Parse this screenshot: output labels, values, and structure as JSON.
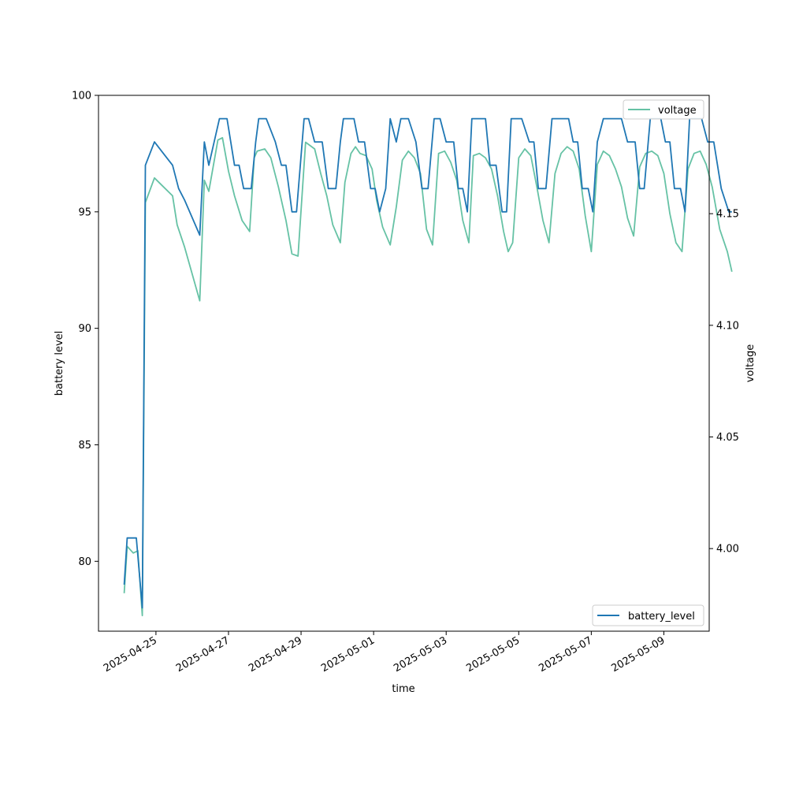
{
  "chart_data": {
    "type": "line",
    "xlabel": "time",
    "ylabel": "battery level",
    "ylabel_right": "voltage",
    "x_ticks": [
      "2025-04-25",
      "2025-04-27",
      "2025-04-29",
      "2025-05-01",
      "2025-05-03",
      "2025-05-05",
      "2025-05-07",
      "2025-05-09"
    ],
    "y_ticks": [
      80,
      85,
      90,
      95,
      100
    ],
    "y_right_ticks": [
      "4.00",
      "4.05",
      "4.10",
      "4.15"
    ],
    "ylim": [
      77.0,
      100.0
    ],
    "ylim_right": [
      3.963,
      4.203
    ],
    "xlim": [
      "2025-04-23T10:00",
      "2025-05-10T06:00"
    ],
    "grid": false,
    "series": [
      {
        "name": "battery_level",
        "axis": "left",
        "color": "#1f77b4",
        "legend_position": "lower right",
        "points": [
          [
            "2025-04-24T03:00",
            79
          ],
          [
            "2025-04-24T05:00",
            81
          ],
          [
            "2025-04-24T11:00",
            81
          ],
          [
            "2025-04-24T15:00",
            78
          ],
          [
            "2025-04-24T17:00",
            97
          ],
          [
            "2025-04-24T23:00",
            98
          ],
          [
            "2025-04-25T05:00",
            97.5
          ],
          [
            "2025-04-25T11:00",
            97
          ],
          [
            "2025-04-25T15:00",
            96
          ],
          [
            "2025-04-25T19:00",
            95.5
          ],
          [
            "2025-04-26T05:00",
            94
          ],
          [
            "2025-04-26T08:00",
            98
          ],
          [
            "2025-04-26T11:00",
            97
          ],
          [
            "2025-04-26T18:00",
            99
          ],
          [
            "2025-04-26T23:00",
            99
          ],
          [
            "2025-04-27T04:00",
            97
          ],
          [
            "2025-04-27T07:00",
            97
          ],
          [
            "2025-04-27T10:00",
            96
          ],
          [
            "2025-04-27T15:00",
            96
          ],
          [
            "2025-04-27T18:00",
            98
          ],
          [
            "2025-04-27T20:00",
            99
          ],
          [
            "2025-04-28T01:00",
            99
          ],
          [
            "2025-04-28T07:00",
            98
          ],
          [
            "2025-04-28T11:00",
            97
          ],
          [
            "2025-04-28T14:00",
            97
          ],
          [
            "2025-04-28T18:00",
            95
          ],
          [
            "2025-04-28T21:00",
            95
          ],
          [
            "2025-04-29T02:00",
            99
          ],
          [
            "2025-04-29T05:00",
            99
          ],
          [
            "2025-04-29T09:00",
            98
          ],
          [
            "2025-04-29T14:00",
            98
          ],
          [
            "2025-04-29T18:00",
            96
          ],
          [
            "2025-04-29T23:00",
            96
          ],
          [
            "2025-04-30T02:00",
            98
          ],
          [
            "2025-04-30T04:00",
            99
          ],
          [
            "2025-04-30T11:00",
            99
          ],
          [
            "2025-04-30T14:00",
            98
          ],
          [
            "2025-04-30T18:00",
            98
          ],
          [
            "2025-04-30T22:00",
            96
          ],
          [
            "2025-05-01T01:00",
            96
          ],
          [
            "2025-05-01T04:00",
            95
          ],
          [
            "2025-05-01T08:00",
            96
          ],
          [
            "2025-05-01T11:00",
            99
          ],
          [
            "2025-05-01T15:00",
            98
          ],
          [
            "2025-05-01T18:00",
            99
          ],
          [
            "2025-05-01T23:00",
            99
          ],
          [
            "2025-05-02T04:00",
            98
          ],
          [
            "2025-05-02T08:00",
            96
          ],
          [
            "2025-05-02T12:00",
            96
          ],
          [
            "2025-05-02T16:00",
            99
          ],
          [
            "2025-05-02T20:00",
            99
          ],
          [
            "2025-05-03T00:00",
            98
          ],
          [
            "2025-05-03T05:00",
            98
          ],
          [
            "2025-05-03T08:00",
            96
          ],
          [
            "2025-05-03T11:00",
            96
          ],
          [
            "2025-05-03T14:00",
            95
          ],
          [
            "2025-05-03T17:00",
            99
          ],
          [
            "2025-05-03T21:00",
            99
          ],
          [
            "2025-05-04T02:00",
            99
          ],
          [
            "2025-05-04T05:00",
            97
          ],
          [
            "2025-05-04T09:00",
            97
          ],
          [
            "2025-05-04T13:00",
            95
          ],
          [
            "2025-05-04T16:00",
            95
          ],
          [
            "2025-05-04T19:00",
            99
          ],
          [
            "2025-05-05T02:00",
            99
          ],
          [
            "2025-05-05T07:00",
            98
          ],
          [
            "2025-05-05T10:00",
            98
          ],
          [
            "2025-05-05T13:00",
            96
          ],
          [
            "2025-05-05T18:00",
            96
          ],
          [
            "2025-05-05T22:00",
            99
          ],
          [
            "2025-05-06T04:00",
            99
          ],
          [
            "2025-05-06T09:00",
            99
          ],
          [
            "2025-05-06T12:00",
            98
          ],
          [
            "2025-05-06T15:00",
            98
          ],
          [
            "2025-05-06T18:00",
            96
          ],
          [
            "2025-05-06T22:00",
            96
          ],
          [
            "2025-05-07T01:00",
            95
          ],
          [
            "2025-05-07T04:00",
            98
          ],
          [
            "2025-05-07T08:00",
            99
          ],
          [
            "2025-05-07T14:00",
            99
          ],
          [
            "2025-05-07T20:00",
            99
          ],
          [
            "2025-05-08T00:00",
            98
          ],
          [
            "2025-05-08T05:00",
            98
          ],
          [
            "2025-05-08T08:00",
            96
          ],
          [
            "2025-05-08T11:00",
            96
          ],
          [
            "2025-05-08T15:00",
            99
          ],
          [
            "2025-05-08T18:00",
            99
          ],
          [
            "2025-05-08T22:00",
            99
          ],
          [
            "2025-05-09T01:00",
            98
          ],
          [
            "2025-05-09T04:00",
            98
          ],
          [
            "2025-05-09T07:00",
            96
          ],
          [
            "2025-05-09T11:00",
            96
          ],
          [
            "2025-05-09T14:00",
            95
          ],
          [
            "2025-05-09T17:00",
            99
          ],
          [
            "2025-05-09T21:00",
            99
          ],
          [
            "2025-05-10T01:00",
            99
          ],
          [
            "2025-05-10T05:00",
            98
          ],
          [
            "2025-05-10T09:00",
            98
          ],
          [
            "2025-05-10T14:00",
            96
          ],
          [
            "2025-05-10T19:00",
            95
          ],
          [
            "2025-05-10T21:00",
            95
          ]
        ]
      },
      {
        "name": "voltage",
        "axis": "right",
        "color": "#66c2a5",
        "legend_position": "upper right",
        "points": [
          [
            "2025-04-24T03:00",
            3.98
          ],
          [
            "2025-04-24T05:00",
            4.001
          ],
          [
            "2025-04-24T09:00",
            3.998
          ],
          [
            "2025-04-24T12:00",
            3.999
          ],
          [
            "2025-04-24T15:00",
            3.97
          ],
          [
            "2025-04-24T17:00",
            4.155
          ],
          [
            "2025-04-24T23:00",
            4.166
          ],
          [
            "2025-04-25T05:00",
            4.162
          ],
          [
            "2025-04-25T11:00",
            4.158
          ],
          [
            "2025-04-25T14:00",
            4.145
          ],
          [
            "2025-04-25T19:00",
            4.135
          ],
          [
            "2025-04-26T05:00",
            4.111
          ],
          [
            "2025-04-26T08:00",
            4.165
          ],
          [
            "2025-04-26T11:00",
            4.16
          ],
          [
            "2025-04-26T17:00",
            4.183
          ],
          [
            "2025-04-26T20:00",
            4.184
          ],
          [
            "2025-04-27T00:00",
            4.169
          ],
          [
            "2025-04-27T04:00",
            4.158
          ],
          [
            "2025-04-27T09:00",
            4.147
          ],
          [
            "2025-04-27T14:00",
            4.142
          ],
          [
            "2025-04-27T17:00",
            4.175
          ],
          [
            "2025-04-27T19:00",
            4.178
          ],
          [
            "2025-04-28T00:00",
            4.179
          ],
          [
            "2025-04-28T04:00",
            4.175
          ],
          [
            "2025-04-28T09:00",
            4.162
          ],
          [
            "2025-04-28T14:00",
            4.147
          ],
          [
            "2025-04-28T18:00",
            4.132
          ],
          [
            "2025-04-28T22:00",
            4.131
          ],
          [
            "2025-04-29T03:00",
            4.182
          ],
          [
            "2025-04-29T09:00",
            4.179
          ],
          [
            "2025-04-29T13:00",
            4.168
          ],
          [
            "2025-04-29T17:00",
            4.158
          ],
          [
            "2025-04-29T21:00",
            4.145
          ],
          [
            "2025-04-30T02:00",
            4.137
          ],
          [
            "2025-04-30T05:00",
            4.164
          ],
          [
            "2025-04-30T09:00",
            4.177
          ],
          [
            "2025-04-30T12:00",
            4.18
          ],
          [
            "2025-04-30T15:00",
            4.177
          ],
          [
            "2025-04-30T19:00",
            4.176
          ],
          [
            "2025-04-30T23:00",
            4.17
          ],
          [
            "2025-05-01T02:00",
            4.156
          ],
          [
            "2025-05-01T06:00",
            4.144
          ],
          [
            "2025-05-01T11:00",
            4.136
          ],
          [
            "2025-05-01T15:00",
            4.153
          ],
          [
            "2025-05-01T19:00",
            4.174
          ],
          [
            "2025-05-01T23:00",
            4.178
          ],
          [
            "2025-05-02T03:00",
            4.175
          ],
          [
            "2025-05-02T07:00",
            4.168
          ],
          [
            "2025-05-02T11:00",
            4.143
          ],
          [
            "2025-05-02T15:00",
            4.136
          ],
          [
            "2025-05-02T19:00",
            4.177
          ],
          [
            "2025-05-02T23:00",
            4.178
          ],
          [
            "2025-05-03T03:00",
            4.173
          ],
          [
            "2025-05-03T07:00",
            4.165
          ],
          [
            "2025-05-03T11:00",
            4.147
          ],
          [
            "2025-05-03T15:00",
            4.137
          ],
          [
            "2025-05-03T18:00",
            4.176
          ],
          [
            "2025-05-03T22:00",
            4.177
          ],
          [
            "2025-05-04T02:00",
            4.175
          ],
          [
            "2025-05-04T06:00",
            4.17
          ],
          [
            "2025-05-04T10:00",
            4.158
          ],
          [
            "2025-05-04T14:00",
            4.142
          ],
          [
            "2025-05-04T17:00",
            4.133
          ],
          [
            "2025-05-04T20:00",
            4.137
          ],
          [
            "2025-05-05T00:00",
            4.175
          ],
          [
            "2025-05-05T04:00",
            4.179
          ],
          [
            "2025-05-05T08:00",
            4.176
          ],
          [
            "2025-05-05T12:00",
            4.162
          ],
          [
            "2025-05-05T16:00",
            4.147
          ],
          [
            "2025-05-05T20:00",
            4.137
          ],
          [
            "2025-05-06T00:00",
            4.168
          ],
          [
            "2025-05-06T04:00",
            4.177
          ],
          [
            "2025-05-06T08:00",
            4.18
          ],
          [
            "2025-05-06T12:00",
            4.178
          ],
          [
            "2025-05-06T16:00",
            4.17
          ],
          [
            "2025-05-06T20:00",
            4.149
          ],
          [
            "2025-05-07T00:00",
            4.133
          ],
          [
            "2025-05-07T04:00",
            4.172
          ],
          [
            "2025-05-07T08:00",
            4.178
          ],
          [
            "2025-05-07T12:00",
            4.176
          ],
          [
            "2025-05-07T16:00",
            4.17
          ],
          [
            "2025-05-07T20:00",
            4.162
          ],
          [
            "2025-05-08T00:00",
            4.148
          ],
          [
            "2025-05-08T04:00",
            4.14
          ],
          [
            "2025-05-08T08:00",
            4.171
          ],
          [
            "2025-05-08T12:00",
            4.177
          ],
          [
            "2025-05-08T16:00",
            4.178
          ],
          [
            "2025-05-08T20:00",
            4.176
          ],
          [
            "2025-05-09T00:00",
            4.168
          ],
          [
            "2025-05-09T04:00",
            4.15
          ],
          [
            "2025-05-09T08:00",
            4.137
          ],
          [
            "2025-05-09T12:00",
            4.133
          ],
          [
            "2025-05-09T16:00",
            4.17
          ],
          [
            "2025-05-09T20:00",
            4.177
          ],
          [
            "2025-05-10T00:00",
            4.178
          ],
          [
            "2025-05-10T04:00",
            4.172
          ],
          [
            "2025-05-10T08:00",
            4.162
          ],
          [
            "2025-05-10T13:00",
            4.143
          ],
          [
            "2025-05-10T18:00",
            4.133
          ],
          [
            "2025-05-10T21:00",
            4.124
          ]
        ]
      }
    ]
  }
}
